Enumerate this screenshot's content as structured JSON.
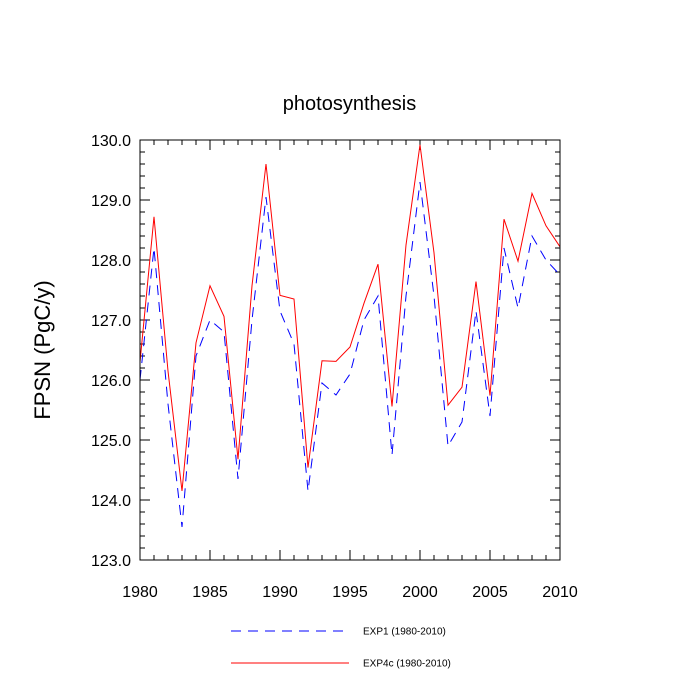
{
  "chart_data": {
    "type": "line",
    "title": "photosynthesis",
    "xlabel": "",
    "ylabel": "FPSN  (PgC/y)",
    "xlim": [
      1980,
      2010
    ],
    "ylim": [
      123.0,
      130.0
    ],
    "x_ticks": [
      "1980",
      "1985",
      "1990",
      "1995",
      "2000",
      "2005",
      "2010"
    ],
    "y_ticks": [
      "123.0",
      "124.0",
      "125.0",
      "126.0",
      "127.0",
      "128.0",
      "129.0",
      "130.0"
    ],
    "grid": false,
    "legend_position": "bottom",
    "x": [
      1980,
      1981,
      1982,
      1983,
      1984,
      1985,
      1986,
      1987,
      1988,
      1989,
      1990,
      1991,
      1992,
      1993,
      1994,
      1995,
      1996,
      1997,
      1998,
      1999,
      2000,
      2001,
      2002,
      2003,
      2004,
      2005,
      2006,
      2007,
      2008,
      2009,
      2010
    ],
    "series": [
      {
        "name": "EXP1 (1980-2010)",
        "color": "#0000ff",
        "style": "dashed",
        "values": [
          126.0,
          128.2,
          125.6,
          123.55,
          126.4,
          127.0,
          126.8,
          124.35,
          127.0,
          129.05,
          127.15,
          126.6,
          124.15,
          125.95,
          125.75,
          126.1,
          127.0,
          127.4,
          124.75,
          127.4,
          129.3,
          127.4,
          124.9,
          125.3,
          127.15,
          125.4,
          128.2,
          127.2,
          128.4,
          128.0,
          127.75
        ]
      },
      {
        "name": "EXP4c (1980-2010)",
        "color": "#ff0000",
        "style": "solid",
        "values": [
          126.3,
          128.72,
          126.15,
          124.15,
          126.62,
          127.57,
          127.06,
          124.68,
          127.57,
          129.6,
          127.41,
          127.35,
          124.54,
          126.32,
          126.31,
          126.55,
          127.28,
          127.93,
          125.56,
          128.25,
          129.92,
          128.12,
          125.58,
          125.88,
          127.64,
          125.74,
          128.68,
          127.98,
          129.11,
          128.57,
          128.22
        ]
      }
    ]
  }
}
